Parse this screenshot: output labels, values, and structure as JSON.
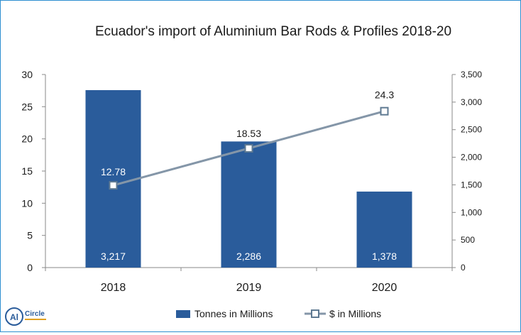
{
  "chart_data": {
    "type": "bar+line",
    "title": "Ecuador's import of Aluminium Bar Rods & Profiles 2018-20",
    "categories": [
      "2018",
      "2019",
      "2020"
    ],
    "left_axis": {
      "ylim": [
        0,
        30
      ],
      "ticks": [
        "0",
        "5",
        "10",
        "15",
        "20",
        "25",
        "30"
      ]
    },
    "right_axis": {
      "ylim": [
        0,
        3500
      ],
      "ticks": [
        "0",
        "500",
        "1,000",
        "1,500",
        "2,000",
        "2,500",
        "3,000",
        "3,500"
      ]
    },
    "series": [
      {
        "name": "Tonnes in Millions",
        "type": "bar",
        "axis": "right",
        "values": [
          3217,
          2286,
          1378
        ],
        "labels": [
          "3,217",
          "2,286",
          "1,378"
        ],
        "color": "#2a5c9b"
      },
      {
        "name": "$ in Millions",
        "type": "line",
        "axis": "left",
        "values": [
          12.78,
          18.53,
          24.3
        ],
        "labels": [
          "12.78",
          "18.53",
          "24.3"
        ],
        "color": "#8496a8"
      }
    ],
    "legend_position": "bottom",
    "grid": false
  },
  "logo": {
    "text_al": "Al",
    "text_circle": "Circle"
  }
}
